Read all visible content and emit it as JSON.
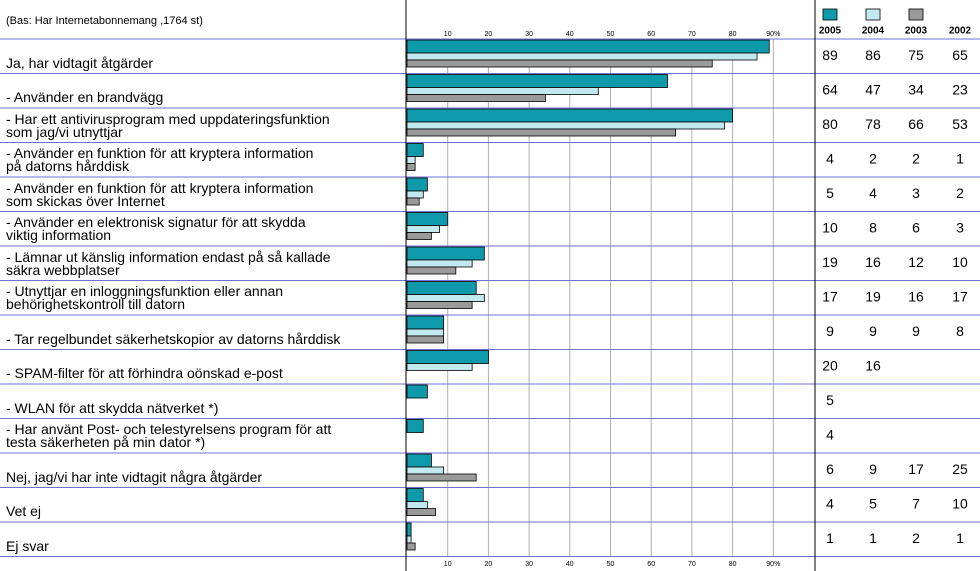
{
  "chart_data": {
    "type": "bar",
    "orientation": "horizontal",
    "subtitle": "(Bas: Har Internetabonnemang ,1764 st)",
    "categories": [
      "Ja, har vidtagit åtgärder",
      "-  Använder en brandvägg",
      "-  Har ett antivirusprogram med uppdateringsfunktion\n   som jag/vi utnyttjar",
      "-  Använder en funktion för att kryptera information\n   på datorns hårddisk",
      "-  Använder en funktion för att kryptera information\n   som skickas över Internet",
      "-  Använder en elektronisk signatur för att skydda\n   viktig information",
      "-  Lämnar ut känslig information endast på så kallade\n   säkra webbplatser",
      "-  Utnyttjar en inloggningsfunktion eller annan\n   behörighetskontroll till datorn",
      "-  Tar regelbundet säkerhetskopior av datorns hårddisk",
      "-  SPAM-filter för att förhindra oönskad e-post",
      "-  WLAN för att skydda nätverket *)",
      "-  Har använt Post- och telestyrelsens program för att\n   testa säkerheten på min dator *)",
      "Nej, jag/vi har inte vidtagit några åtgärder",
      "Vet ej",
      "Ej svar"
    ],
    "series": [
      {
        "name": "2005",
        "color": "#0e9aab",
        "values": [
          89,
          64,
          80,
          4,
          5,
          10,
          19,
          17,
          9,
          20,
          5,
          4,
          6,
          4,
          1
        ]
      },
      {
        "name": "2004",
        "color": "#c3e9f0",
        "values": [
          86,
          47,
          78,
          2,
          4,
          8,
          16,
          19,
          9,
          16,
          null,
          null,
          9,
          5,
          1
        ]
      },
      {
        "name": "2003",
        "color": "#9a9a9a",
        "values": [
          75,
          34,
          66,
          2,
          3,
          6,
          12,
          16,
          9,
          null,
          null,
          null,
          17,
          7,
          2
        ]
      },
      {
        "name": "2002",
        "values": [
          65,
          23,
          53,
          1,
          2,
          3,
          10,
          17,
          8,
          null,
          null,
          null,
          25,
          10,
          1
        ]
      }
    ],
    "xlim": [
      0,
      100
    ],
    "xticks": [
      10,
      20,
      30,
      40,
      50,
      60,
      70,
      80,
      {
        "value": 90,
        "label": "90%"
      }
    ],
    "grid": true
  }
}
